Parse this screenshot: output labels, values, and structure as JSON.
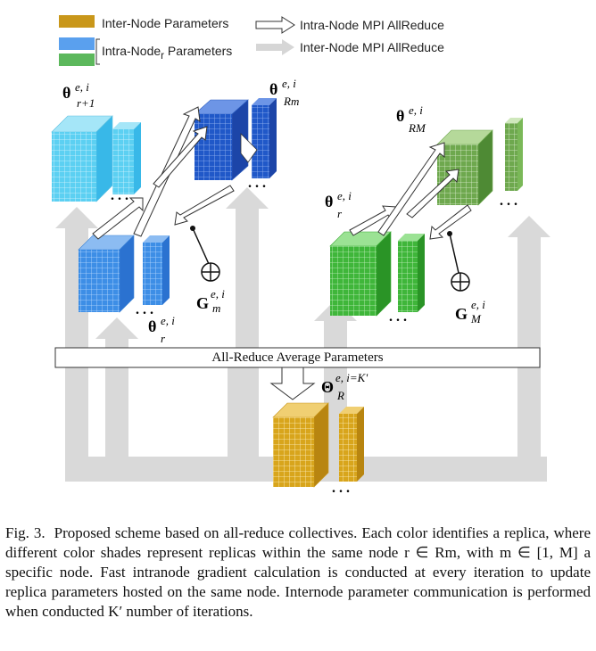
{
  "legend": {
    "inter_node_params": "Inter-Node Parameters",
    "intra_node_params_prefix": "Intra-Node",
    "intra_node_params_sub": "r",
    "intra_node_params_suffix": " Parameters",
    "intra_node_allreduce": "Intra-Node MPI AllReduce",
    "inter_node_allreduce": "Inter-Node MPI AllReduce",
    "colors": {
      "inter": "#d4a21a",
      "intra_blue": "#4a90e2",
      "intra_green": "#5cb85c",
      "arrow_gray": "#d6d6d6"
    }
  },
  "labels": {
    "theta_r1_sup": "e, i",
    "theta_r1_sub": "r+1",
    "theta_rm_sup": "e, i",
    "theta_rm_sub": "Rm",
    "theta_r_left_sup": "e, i",
    "theta_r_left_sub": "r",
    "g_m_sup": "e, i",
    "g_m_sub": "m",
    "theta_r_right_sup": "e, i",
    "theta_r_right_sub": "r",
    "theta_rM_sup": "e, i",
    "theta_rM_sub": "RM",
    "g_M_sup": "e, i",
    "g_M_sub": "M",
    "big_theta_sup": "e, i=K'",
    "big_theta_sub": "R",
    "ellipsis": ". . ."
  },
  "allreduce_bar": "All-Reduce Average Parameters",
  "caption": {
    "fig_label": "Fig. 3.",
    "text": "Proposed scheme based on all-reduce collectives. Each color identifies a replica, where different color shades represent replicas within the same node r ∈ Rm, with m ∈ [1, M] a specific node. Fast intranode gradient calculation is conducted at every iteration to update replica parameters hosted on the same node. Internode parameter communication is performed when conducted K′ number of iterations."
  }
}
